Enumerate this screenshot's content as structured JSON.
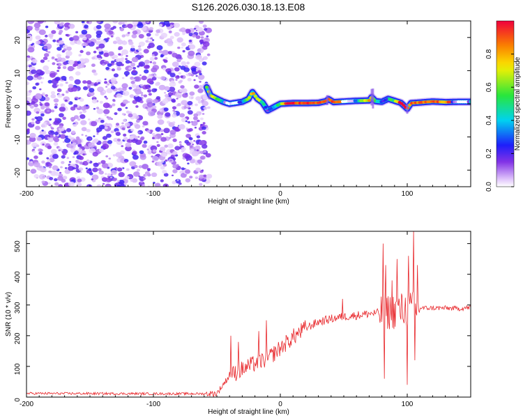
{
  "page": {
    "title": "S126.2026.030.18.13.E08"
  },
  "colors": {
    "snr_line": "#e8262a",
    "axis": "#000000",
    "background": "#ffffff"
  },
  "chart_data": [
    {
      "type": "heatmap",
      "title": "S126.2026.030.18.13.E08",
      "xlabel": "Height of straight line (km)",
      "ylabel": "Frequency (Hz)",
      "xlim": [
        -200,
        150
      ],
      "ylim": [
        -25,
        25
      ],
      "x_ticks": [
        -200,
        -100,
        0,
        100
      ],
      "x_tick_labels": [
        "-200",
        "-100",
        "0",
        "100"
      ],
      "y_ticks": [
        -20,
        -10,
        0,
        10,
        20
      ],
      "y_tick_labels": [
        "-20",
        "-10",
        "0",
        "10",
        "20"
      ],
      "colorbar": {
        "label": "Normalized spectral amplitude",
        "range": [
          0,
          1
        ],
        "ticks": [
          0,
          0.2,
          0.4,
          0.6,
          0.8
        ],
        "tick_labels": [
          "0.0",
          "0.2",
          "0.4",
          "0.6",
          "0.8"
        ]
      },
      "noise_region_x": [
        -200,
        -56
      ],
      "signal_start_x": -58,
      "frequency_ridge": {
        "x": [
          -58,
          -55,
          -50,
          -45,
          -40,
          -35,
          -30,
          -25,
          -22,
          -18,
          -14,
          -10,
          -5,
          0,
          10,
          20,
          30,
          36,
          38,
          42,
          50,
          60,
          70,
          72,
          75,
          80,
          85,
          90,
          95,
          100,
          103,
          110,
          120,
          130,
          140,
          150
        ],
        "y": [
          5,
          2.5,
          1.5,
          0.6,
          0,
          0.3,
          0.6,
          1.5,
          3.5,
          1.5,
          0.4,
          -2,
          -1,
          0,
          0.2,
          0.2,
          0.3,
          0.8,
          1.4,
          0.5,
          0.7,
          0.9,
          1,
          2,
          0.8,
          0.6,
          1.5,
          0.9,
          0.3,
          -1.5,
          0.2,
          0.4,
          0.7,
          0.5,
          0.6,
          0.6
        ]
      }
    },
    {
      "type": "line",
      "title": "",
      "xlabel": "Height of straight line (km)",
      "ylabel": "SNR (10 * v/v)",
      "xlim": [
        -200,
        150
      ],
      "ylim": [
        0,
        540
      ],
      "x_ticks": [
        -200,
        -100,
        0,
        100
      ],
      "x_tick_labels": [
        "-200",
        "-100",
        "0",
        "100"
      ],
      "y_ticks": [
        0,
        100,
        200,
        300,
        400,
        500
      ],
      "y_tick_labels": [
        "0",
        "100",
        "200",
        "300",
        "400",
        "500"
      ],
      "series": [
        {
          "name": "SNR",
          "baseline": {
            "x": [
              -200,
              -100,
              -60,
              -50,
              -40,
              -30,
              -20,
              -10,
              0,
              10,
              20,
              30,
              40,
              50,
              60,
              70,
              80,
              90,
              100,
              110,
              120,
              130,
              140,
              150
            ],
            "y": [
              12,
              11,
              11,
              12,
              70,
              90,
              110,
              125,
              160,
              195,
              225,
              245,
              255,
              262,
              266,
              272,
              275,
              280,
              285,
              290,
              290,
              290,
              288,
              292
            ]
          },
          "spikes": {
            "x": [
              -39,
              -33,
              -17,
              -11,
              49,
              81,
              82,
              83,
              88,
              92,
              100,
              101,
              105,
              106,
              108
            ],
            "y": [
              200,
              180,
              215,
              250,
              320,
              500,
              60,
              430,
              380,
              450,
              40,
              460,
              540,
              120,
              430
            ]
          }
        }
      ]
    }
  ]
}
